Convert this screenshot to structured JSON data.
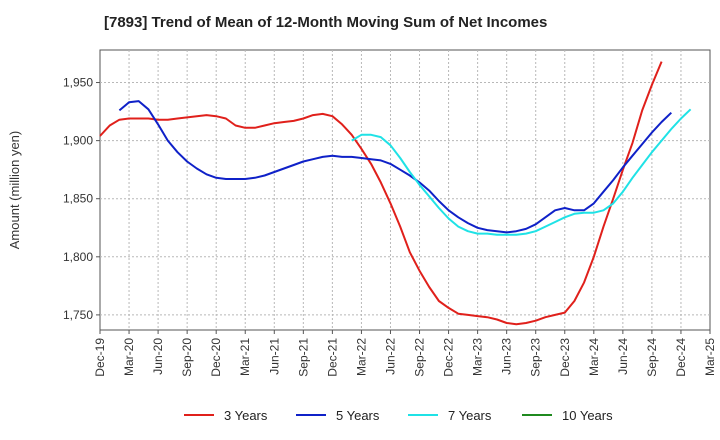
{
  "chart_data": {
    "type": "line",
    "title": "[7893]  Trend of Mean of 12-Month Moving Sum of Net Incomes",
    "ylabel": "Amount (million yen)",
    "xlabel": "",
    "ylim": [
      1737,
      1978
    ],
    "yticks": [
      1750,
      1800,
      1850,
      1900,
      1950
    ],
    "ytick_labels": [
      "1,750",
      "1,800",
      "1,850",
      "1,900",
      "1,950"
    ],
    "x_categories": [
      "Dec-19",
      "Mar-20",
      "Jun-20",
      "Sep-20",
      "Dec-20",
      "Mar-21",
      "Jun-21",
      "Sep-21",
      "Dec-21",
      "Mar-22",
      "Jun-22",
      "Sep-22",
      "Dec-22",
      "Mar-23",
      "Jun-23",
      "Sep-23",
      "Dec-23",
      "Mar-24",
      "Jun-24",
      "Sep-24",
      "Dec-24",
      "Mar-25"
    ],
    "grid": true,
    "legend_position": "bottom",
    "series": [
      {
        "name": "3 Years",
        "color": "#e0201b",
        "start_index": 0,
        "values": [
          1904,
          1913,
          1918,
          1919,
          1919,
          1919,
          1918,
          1918,
          1919,
          1920,
          1921,
          1922,
          1921,
          1919,
          1913,
          1911,
          1911,
          1913,
          1915,
          1916,
          1917,
          1919,
          1922,
          1923,
          1921,
          1914,
          1905,
          1893,
          1880,
          1864,
          1846,
          1826,
          1804,
          1788,
          1774,
          1762,
          1756,
          1751,
          1750,
          1749,
          1748,
          1746,
          1743,
          1742,
          1743,
          1745,
          1748,
          1750,
          1752,
          1762,
          1778,
          1800,
          1826,
          1850,
          1875,
          1898,
          1926,
          1948,
          1968
        ]
      },
      {
        "name": "5 Years",
        "color": "#0f21c8",
        "start_index": 2,
        "values": [
          1926,
          1933,
          1934,
          1927,
          1914,
          1900,
          1890,
          1882,
          1876,
          1871,
          1868,
          1867,
          1867,
          1867,
          1868,
          1870,
          1873,
          1876,
          1879,
          1882,
          1884,
          1886,
          1887,
          1886,
          1886,
          1885,
          1884,
          1883,
          1880,
          1875,
          1870,
          1864,
          1857,
          1848,
          1840,
          1834,
          1829,
          1825,
          1823,
          1822,
          1821,
          1822,
          1824,
          1828,
          1834,
          1840,
          1842,
          1840,
          1840,
          1846,
          1856,
          1866,
          1877,
          1887,
          1897,
          1907,
          1916,
          1924
        ]
      },
      {
        "name": "7 Years",
        "color": "#1fe2e6",
        "start_index": 26,
        "values": [
          1900,
          1905,
          1905,
          1903,
          1896,
          1885,
          1873,
          1862,
          1852,
          1842,
          1833,
          1826,
          1822,
          1820,
          1820,
          1819,
          1819,
          1819,
          1820,
          1822,
          1826,
          1830,
          1834,
          1837,
          1838,
          1838,
          1840,
          1846,
          1856,
          1868,
          1879,
          1890,
          1900,
          1910,
          1919,
          1927
        ]
      },
      {
        "name": "10 Years",
        "color": "#1f8a1f",
        "start_index": 0,
        "values": []
      }
    ]
  }
}
